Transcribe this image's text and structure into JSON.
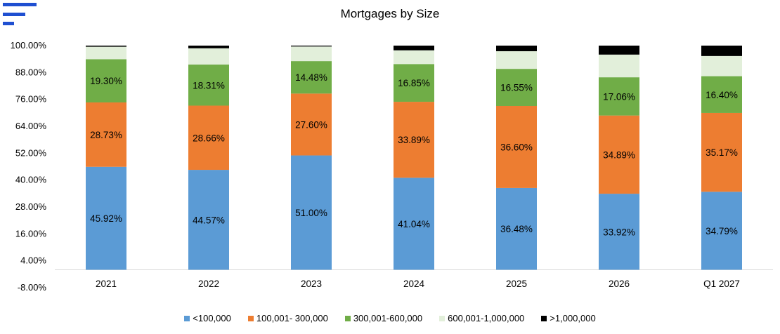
{
  "chart_data": {
    "type": "bar",
    "stacked": true,
    "title": "Mortgages by Size",
    "categories": [
      "2021",
      "2022",
      "2023",
      "2024",
      "2025",
      "2026",
      "Q1 2027"
    ],
    "y_ticks": [
      "100.00%",
      "88.00%",
      "76.00%",
      "64.00%",
      "52.00%",
      "40.00%",
      "28.00%",
      "16.00%",
      "4.00%",
      "-8.00%"
    ],
    "ylim": [
      -8,
      100
    ],
    "legend_position": "bottom",
    "grid": false,
    "series": [
      {
        "name": "<100,000",
        "color": "#5b9bd5",
        "values": [
          45.92,
          44.57,
          51.0,
          41.04,
          36.48,
          33.92,
          34.79
        ],
        "labels": [
          "45.92%",
          "44.57%",
          "51.00%",
          "41.04%",
          "36.48%",
          "33.92%",
          "34.79%"
        ]
      },
      {
        "name": "100,001- 300,000",
        "color": "#ed7d31",
        "values": [
          28.73,
          28.66,
          27.6,
          33.89,
          36.6,
          34.89,
          35.17
        ],
        "labels": [
          "28.73%",
          "28.66%",
          "27.60%",
          "33.89%",
          "36.60%",
          "34.89%",
          "35.17%"
        ]
      },
      {
        "name": "300,001-600,000",
        "color": "#70ad47",
        "values": [
          19.3,
          18.31,
          14.48,
          16.85,
          16.55,
          17.06,
          16.4
        ],
        "labels": [
          "19.30%",
          "18.31%",
          "14.48%",
          "16.85%",
          "16.55%",
          "17.06%",
          "16.40%"
        ]
      },
      {
        "name": "600,001-1,000,000",
        "color": "#e2efda",
        "values": [
          5.55,
          7.26,
          6.52,
          6.12,
          7.87,
          10.12,
          8.99
        ],
        "labels": []
      },
      {
        "name": ">1,000,000",
        "color": "#000000",
        "values": [
          0.5,
          1.2,
          0.4,
          2.1,
          2.5,
          4.01,
          4.65
        ],
        "labels": []
      }
    ]
  }
}
